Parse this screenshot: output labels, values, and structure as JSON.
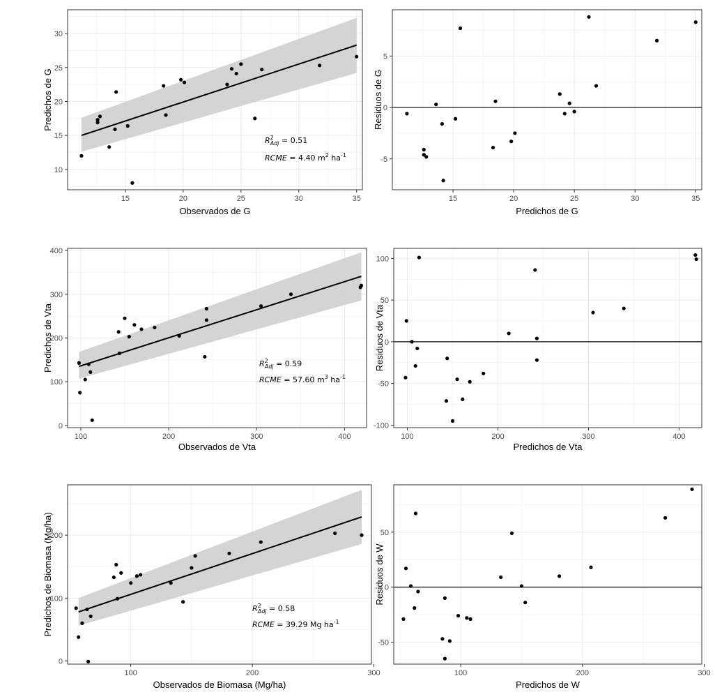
{
  "chart_data": [
    {
      "id": "g-obs-pred",
      "type": "scatter",
      "xlabel": "Observados de G",
      "ylabel": "Predichos de G",
      "xlim": [
        10,
        35.5
      ],
      "ylim": [
        7,
        33.5
      ],
      "xticks": [
        15,
        20,
        25,
        30,
        35
      ],
      "yticks": [
        10,
        15,
        20,
        25,
        30
      ],
      "points": [
        [
          11.2,
          12.0
        ],
        [
          12.6,
          17.3
        ],
        [
          12.6,
          16.9
        ],
        [
          12.8,
          17.8
        ],
        [
          13.6,
          13.3
        ],
        [
          14.1,
          15.9
        ],
        [
          14.2,
          21.4
        ],
        [
          15.2,
          16.4
        ],
        [
          15.6,
          8.0
        ],
        [
          18.3,
          22.3
        ],
        [
          18.5,
          18.0
        ],
        [
          19.8,
          23.2
        ],
        [
          20.1,
          22.8
        ],
        [
          23.8,
          22.5
        ],
        [
          24.2,
          24.8
        ],
        [
          24.6,
          24.1
        ],
        [
          25.0,
          25.5
        ],
        [
          26.2,
          17.5
        ],
        [
          26.8,
          24.7
        ],
        [
          31.8,
          25.3
        ],
        [
          35.0,
          26.6
        ]
      ],
      "fit": {
        "x": [
          11.2,
          35.0
        ],
        "y": [
          15.0,
          28.3
        ]
      },
      "band": {
        "x": [
          11.2,
          35.0
        ],
        "upper": [
          17.6,
          32.3
        ],
        "lower": [
          12.6,
          24.2
        ]
      },
      "annotations": {
        "r2_label": "R",
        "r2_sup": "2",
        "r2_sub": "Adj",
        "r2_value": " = 0.51",
        "rcme_label": "RCME",
        "rcme_value": " = 4.40 m",
        "rcme_sup1": "2",
        "rcme_unit": " ha",
        "rcme_sup2": "-1"
      }
    },
    {
      "id": "g-resid",
      "type": "scatter",
      "xlabel": "Predichos de G",
      "ylabel": "Residuos de G",
      "xlim": [
        10,
        35.5
      ],
      "ylim": [
        -8,
        9.5
      ],
      "xticks": [
        15,
        20,
        25,
        30,
        35
      ],
      "yticks": [
        -5,
        0,
        5
      ],
      "hline": 0,
      "points": [
        [
          11.2,
          -0.6
        ],
        [
          12.6,
          -4.1
        ],
        [
          12.6,
          -4.6
        ],
        [
          12.8,
          -4.8
        ],
        [
          13.6,
          0.3
        ],
        [
          14.1,
          -1.6
        ],
        [
          14.2,
          -7.1
        ],
        [
          15.2,
          -1.1
        ],
        [
          15.6,
          7.7
        ],
        [
          18.3,
          -3.9
        ],
        [
          18.5,
          0.6
        ],
        [
          19.8,
          -3.3
        ],
        [
          20.1,
          -2.5
        ],
        [
          23.8,
          1.3
        ],
        [
          24.2,
          -0.6
        ],
        [
          24.6,
          0.4
        ],
        [
          25.0,
          -0.4
        ],
        [
          26.2,
          8.8
        ],
        [
          26.8,
          2.1
        ],
        [
          31.8,
          6.5
        ],
        [
          35.0,
          8.3
        ]
      ]
    },
    {
      "id": "vta-obs-pred",
      "type": "scatter",
      "xlabel": "Observados de Vta",
      "ylabel": "Predichos de Vta",
      "xlim": [
        85,
        425
      ],
      "ylim": [
        -5,
        405
      ],
      "xticks": [
        100,
        200,
        300,
        400
      ],
      "yticks": [
        0,
        100,
        200,
        300,
        400
      ],
      "points": [
        [
          98,
          143
        ],
        [
          99,
          75
        ],
        [
          105,
          105
        ],
        [
          109,
          140
        ],
        [
          111,
          122
        ],
        [
          113,
          12
        ],
        [
          143,
          214
        ],
        [
          144,
          165
        ],
        [
          150,
          245
        ],
        [
          155,
          203
        ],
        [
          161,
          230
        ],
        [
          169,
          220
        ],
        [
          184,
          224
        ],
        [
          212,
          205
        ],
        [
          241,
          157
        ],
        [
          243,
          267
        ],
        [
          243,
          241
        ],
        [
          305,
          273
        ],
        [
          339,
          300
        ],
        [
          418,
          316
        ],
        [
          419,
          320
        ]
      ],
      "fit": {
        "x": [
          98,
          419
        ],
        "y": [
          135,
          341
        ]
      },
      "band": {
        "x": [
          98,
          419
        ],
        "upper": [
          168,
          396
        ],
        "lower": [
          107,
          286
        ]
      },
      "annotations": {
        "r2_label": "R",
        "r2_sup": "2",
        "r2_sub": "Adj",
        "r2_value": " = 0.59",
        "rcme_label": "RCME",
        "rcme_value": " = 57.60 m",
        "rcme_sup1": "3",
        "rcme_unit": " ha",
        "rcme_sup2": "-1"
      }
    },
    {
      "id": "vta-resid",
      "type": "scatter",
      "xlabel": "Predichos de Vta",
      "ylabel": "Residuos de Vta",
      "xlim": [
        85,
        425
      ],
      "ylim": [
        -103,
        112
      ],
      "xticks": [
        100,
        200,
        300,
        400
      ],
      "yticks": [
        -100,
        -50,
        0,
        50,
        100
      ],
      "hline": 0,
      "points": [
        [
          98,
          -43
        ],
        [
          99,
          25
        ],
        [
          105,
          0
        ],
        [
          109,
          -29
        ],
        [
          111,
          -8
        ],
        [
          113,
          101
        ],
        [
          143,
          -71
        ],
        [
          144,
          -20
        ],
        [
          150,
          -95
        ],
        [
          155,
          -45
        ],
        [
          161,
          -69
        ],
        [
          169,
          -48
        ],
        [
          184,
          -38
        ],
        [
          212,
          10
        ],
        [
          241,
          86
        ],
        [
          243,
          4
        ],
        [
          243,
          -22
        ],
        [
          305,
          35
        ],
        [
          339,
          40
        ],
        [
          418,
          104
        ],
        [
          419,
          99
        ]
      ]
    },
    {
      "id": "biomasa-obs-pred",
      "type": "scatter",
      "xlabel": "Observados de Biomasa (Mg/ha)",
      "ylabel": "Predichos de Biomasa (Mg/ha)",
      "xlim": [
        48,
        298
      ],
      "ylim": [
        -5,
        280
      ],
      "xticks": [
        100,
        200,
        300
      ],
      "yticks": [
        0,
        100,
        200
      ],
      "points": [
        [
          55,
          84
        ],
        [
          57,
          38
        ],
        [
          60,
          60
        ],
        [
          64,
          82
        ],
        [
          65,
          -1
        ],
        [
          67,
          71
        ],
        [
          86,
          133
        ],
        [
          88,
          153
        ],
        [
          89,
          99
        ],
        [
          92,
          140
        ],
        [
          100,
          124
        ],
        [
          105,
          135
        ],
        [
          108,
          137
        ],
        [
          133,
          124
        ],
        [
          143,
          94
        ],
        [
          150,
          148
        ],
        [
          153,
          167
        ],
        [
          181,
          171
        ],
        [
          207,
          189
        ],
        [
          268,
          203
        ],
        [
          290,
          200
        ]
      ],
      "fit": {
        "x": [
          57,
          290
        ],
        "y": [
          78,
          229
        ]
      },
      "band": {
        "x": [
          57,
          290
        ],
        "upper": [
          100,
          272
        ],
        "lower": [
          56,
          186
        ]
      },
      "annotations": {
        "r2_label": "R",
        "r2_sup": "2",
        "r2_sub": "Adj",
        "r2_value": " = 0.58",
        "rcme_label": "RCME",
        "rcme_value": " = 39.29 Mg ha",
        "rcme_sup1": "",
        "rcme_unit": "",
        "rcme_sup2": "-1"
      }
    },
    {
      "id": "w-resid",
      "type": "scatter",
      "xlabel": "Predichos de W",
      "ylabel": "Residuos de W",
      "xlim": [
        45,
        298
      ],
      "ylim": [
        -70,
        93
      ],
      "xticks": [
        100,
        200,
        300
      ],
      "yticks": [
        -50,
        0,
        50
      ],
      "hline": 0,
      "points": [
        [
          53,
          -29
        ],
        [
          55,
          17
        ],
        [
          59,
          1
        ],
        [
          62,
          -19
        ],
        [
          63,
          67
        ],
        [
          65,
          -4
        ],
        [
          85,
          -47
        ],
        [
          87,
          -10
        ],
        [
          87,
          -65
        ],
        [
          91,
          -49
        ],
        [
          98,
          -26
        ],
        [
          105,
          -28
        ],
        [
          108,
          -29
        ],
        [
          133,
          9
        ],
        [
          142,
          49
        ],
        [
          150,
          1
        ],
        [
          153,
          -14
        ],
        [
          181,
          10
        ],
        [
          207,
          18
        ],
        [
          268,
          63
        ],
        [
          290,
          89
        ]
      ]
    }
  ]
}
